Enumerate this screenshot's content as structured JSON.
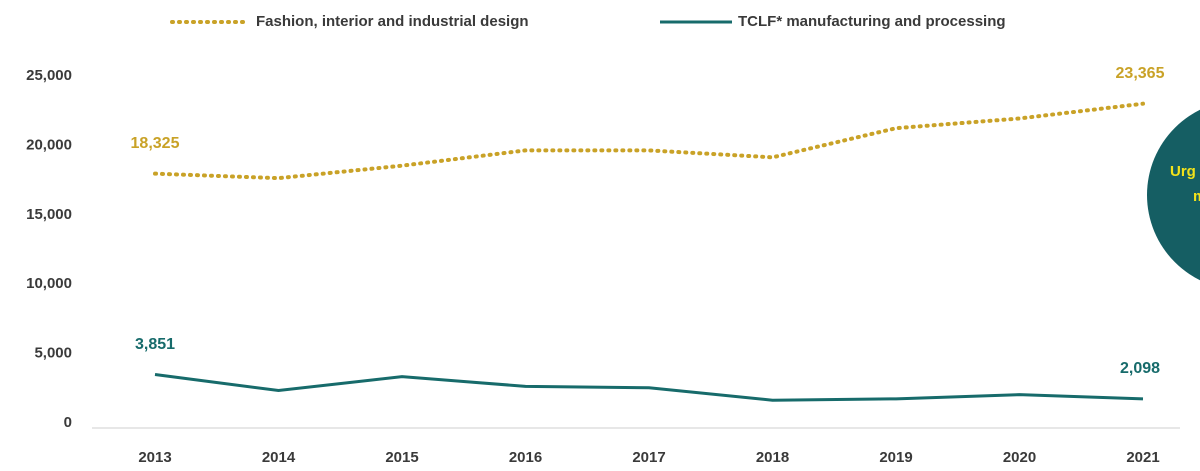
{
  "chart_data": {
    "type": "line",
    "categories": [
      "2013",
      "2014",
      "2015",
      "2016",
      "2017",
      "2018",
      "2019",
      "2020",
      "2021"
    ],
    "series": [
      {
        "name": "Fashion, interior and industrial design",
        "color": "#c9a227",
        "dash": "dotted",
        "values": [
          18325,
          18000,
          18900,
          20000,
          20000,
          19500,
          21600,
          22300,
          23365
        ],
        "value_labels": [
          "18,325",
          null,
          null,
          null,
          null,
          null,
          null,
          null,
          "23,365"
        ]
      },
      {
        "name": "TCLF* manufacturing and processing",
        "color": "#176b6b",
        "dash": "solid",
        "values": [
          3851,
          2700,
          3700,
          3000,
          2900,
          2000,
          2100,
          2400,
          2098
        ],
        "value_labels": [
          "3,851",
          null,
          null,
          null,
          null,
          null,
          null,
          null,
          "2,098"
        ]
      }
    ],
    "ylim": [
      0,
      25000
    ],
    "yticks": [
      0,
      {
        "value": 5000,
        "label": "5,000"
      },
      {
        "value": 10000,
        "label": "10,000"
      },
      {
        "value": 15000,
        "label": "15,000"
      },
      {
        "value": 20000,
        "label": "20,000"
      },
      {
        "value": 25000,
        "label": "25,000"
      }
    ],
    "grid": false,
    "legend": "top",
    "annotations": [
      "Urg",
      "m"
    ]
  }
}
